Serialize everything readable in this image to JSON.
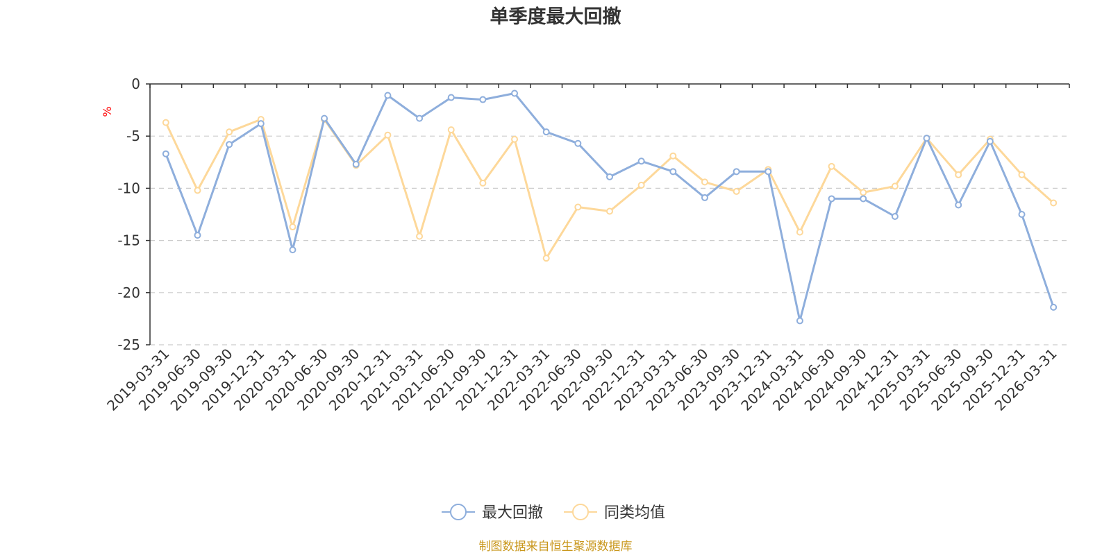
{
  "chart_data": {
    "type": "line",
    "title": "单季度最大回撤",
    "unit": "%",
    "source": "制图数据来自恒生聚源数据库",
    "categories": [
      "2019-03-31",
      "2019-06-30",
      "2019-09-30",
      "2019-12-31",
      "2020-03-31",
      "2020-06-30",
      "2020-09-30",
      "2020-12-31",
      "2021-03-31",
      "2021-06-30",
      "2021-09-30",
      "2021-12-31",
      "2022-03-31",
      "2022-06-30",
      "2022-09-30",
      "2022-12-31",
      "2023-03-31",
      "2023-06-30",
      "2023-09-30",
      "2023-12-31",
      "2024-03-31",
      "2024-06-30",
      "2024-09-30",
      "2024-12-31",
      "2025-03-31",
      "2025-06-30",
      "2025-09-30",
      "2025-12-31",
      "2026-03-31"
    ],
    "series": [
      {
        "name": "最大回撤",
        "color": "#8eaedc",
        "values": [
          -6.7,
          -14.5,
          -5.8,
          -3.8,
          -15.9,
          -3.3,
          -7.7,
          -1.1,
          -3.3,
          -1.3,
          -1.5,
          -0.9,
          -4.6,
          -5.7,
          -8.9,
          -7.4,
          -8.4,
          -10.9,
          -8.4,
          -8.4,
          -22.7,
          -11.0,
          -11.0,
          -12.7,
          -5.2,
          -11.6,
          -5.5,
          -12.5,
          -21.4
        ]
      },
      {
        "name": "同类均值",
        "color": "#fdd89a",
        "values": [
          -3.7,
          -10.2,
          -4.6,
          -3.4,
          -13.7,
          -3.4,
          -7.8,
          -4.9,
          -14.6,
          -4.4,
          -9.5,
          -5.3,
          -16.7,
          -11.8,
          -12.2,
          -9.7,
          -6.9,
          -9.4,
          -10.3,
          -8.2,
          -14.2,
          -7.9,
          -10.4,
          -9.8,
          -5.2,
          -8.7,
          -5.3,
          -8.7,
          -11.4
        ]
      }
    ],
    "yticks": [
      "0",
      "-5",
      "-10",
      "-15",
      "-20",
      "-25"
    ],
    "ylim": [
      -25,
      0
    ],
    "grid": true,
    "legend_position": "bottom-center"
  }
}
